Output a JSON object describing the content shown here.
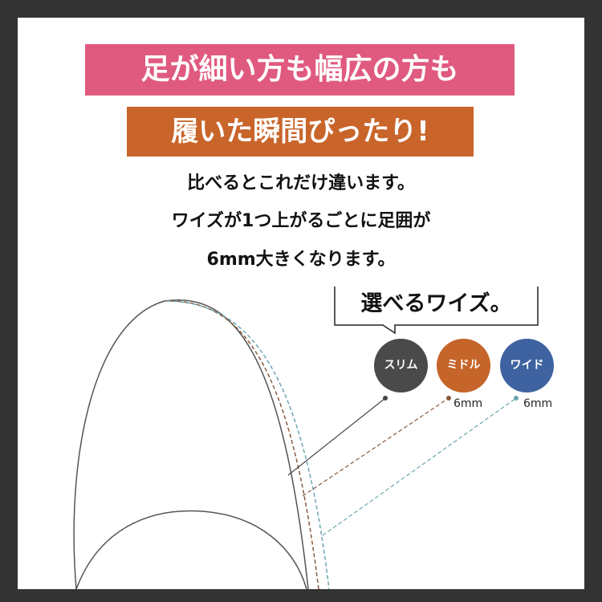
{
  "headline": {
    "line1": "足が細い方も幅広の方も",
    "line2": "履いた瞬間ぴったり!"
  },
  "lead": [
    "比べるとこれだけ違います。",
    "ワイズが1つ上がるごとに足囲が",
    "6mm大きくなります。"
  ],
  "callout": "選べるワイズ。",
  "widths": [
    {
      "label": "スリム",
      "color": "#4a4a4a"
    },
    {
      "label": "ミドル",
      "color": "#c5652a",
      "step": "6mm"
    },
    {
      "label": "ワイド",
      "color": "#3f63a0",
      "step": "6mm"
    }
  ],
  "colors": {
    "pink": "#e05a80",
    "orange": "#c9652a",
    "frame": "#333333",
    "dash_brown": "#8a5a3c",
    "dash_teal": "#6aa7b0"
  }
}
